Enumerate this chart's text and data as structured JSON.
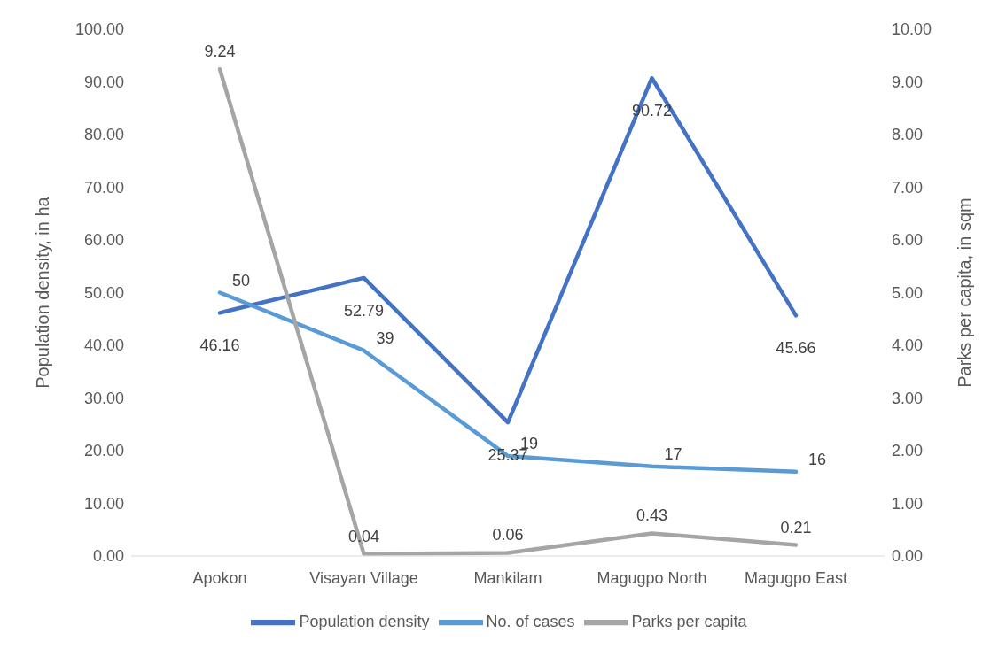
{
  "chart_data": {
    "type": "line",
    "categories": [
      "Apokon",
      "Visayan Village",
      "Mankilam",
      "Magugpo North",
      "Magugpo East"
    ],
    "ylabel": "Population density, in ha",
    "y2label": "Parks per capita, in sqm",
    "ylim": [
      0,
      100
    ],
    "yticks": [
      {
        "value": 0,
        "label": "0.00"
      },
      {
        "value": 10,
        "label": "10.00"
      },
      {
        "value": 20,
        "label": "20.00"
      },
      {
        "value": 30,
        "label": "30.00"
      },
      {
        "value": 40,
        "label": "40.00"
      },
      {
        "value": 50,
        "label": "50.00"
      },
      {
        "value": 60,
        "label": "60.00"
      },
      {
        "value": 70,
        "label": "70.00"
      },
      {
        "value": 80,
        "label": "80.00"
      },
      {
        "value": 90,
        "label": "90.00"
      },
      {
        "value": 100,
        "label": "100.00"
      }
    ],
    "y2lim": [
      0,
      10
    ],
    "y2ticks": [
      {
        "value": 0,
        "label": "0.00"
      },
      {
        "value": 1,
        "label": "1.00"
      },
      {
        "value": 2,
        "label": "2.00"
      },
      {
        "value": 3,
        "label": "3.00"
      },
      {
        "value": 4,
        "label": "4.00"
      },
      {
        "value": 5,
        "label": "5.00"
      },
      {
        "value": 6,
        "label": "6.00"
      },
      {
        "value": 7,
        "label": "7.00"
      },
      {
        "value": 8,
        "label": "8.00"
      },
      {
        "value": 9,
        "label": "9.00"
      },
      {
        "value": 10,
        "label": "10.00"
      }
    ],
    "series": [
      {
        "name": "Population density",
        "color": "#4472c4",
        "values": [
          46.16,
          52.79,
          25.37,
          90.72,
          45.66
        ]
      },
      {
        "name": "No. of cases",
        "color": "#5b9bd5",
        "values": [
          50,
          39,
          19,
          17,
          16
        ]
      },
      {
        "name": "Parks per capita",
        "color": "#a5a5a5",
        "axis": "y2",
        "values": [
          9.24,
          0.04,
          0.06,
          0.43,
          0.21
        ]
      }
    ],
    "data_labels": true,
    "legend": "bottom",
    "marker": "none",
    "line_style": "solid"
  }
}
